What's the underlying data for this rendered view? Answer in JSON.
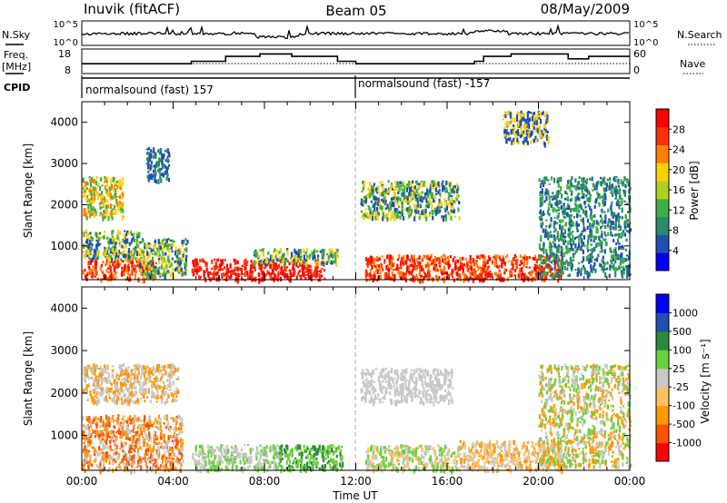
{
  "header": {
    "station": "Inuvik (fitACF)",
    "beam": "Beam 05",
    "date": "08/May/2009"
  },
  "summary_panel": {
    "nsky_label": "N.Sky",
    "nsky_ticks": [
      "10^5",
      "10^0"
    ],
    "nsearch_label": "N.Search",
    "nsearch_ticks": [
      "10^5",
      "10^0"
    ],
    "freq_label_1": "Freq.",
    "freq_label_2": "[MHz]",
    "freq_ticks": [
      "18",
      "8"
    ],
    "nave_label": "Nave",
    "nave_ticks": [
      "60",
      "0"
    ],
    "cpid_label": "CPID",
    "cpid_segments": [
      "normalsound (fast) 157",
      "normalsound (fast) -157"
    ],
    "freq_steps": [
      [
        0,
        12
      ],
      [
        4.8,
        12
      ],
      [
        4.8,
        13
      ],
      [
        6.3,
        13
      ],
      [
        6.3,
        15
      ],
      [
        7.8,
        15
      ],
      [
        7.8,
        16
      ],
      [
        9.2,
        16
      ],
      [
        9.2,
        15
      ],
      [
        11.2,
        15
      ],
      [
        11.2,
        13
      ],
      [
        12,
        13
      ],
      [
        12,
        12
      ],
      [
        17.2,
        12
      ],
      [
        17.2,
        13
      ],
      [
        17.6,
        13
      ],
      [
        17.6,
        15
      ],
      [
        18.8,
        15
      ],
      [
        18.8,
        16
      ],
      [
        21.3,
        16
      ],
      [
        21.3,
        14
      ],
      [
        22.2,
        14
      ],
      [
        22.2,
        15
      ],
      [
        24,
        15
      ]
    ],
    "freq_range": [
      8,
      18
    ]
  },
  "chart_data": [
    {
      "type": "heatmap",
      "name": "Power",
      "xlabel": "",
      "ylabel": "Slant Range [km]",
      "xlim": [
        0,
        24
      ],
      "ylim": [
        180,
        4500
      ],
      "y_ticks": [
        "1000",
        "2000",
        "3000",
        "4000"
      ],
      "colorbar": {
        "label": "Power [dB]",
        "ticks": [
          "28",
          "24",
          "20",
          "16",
          "12",
          "8",
          "4"
        ],
        "colors": [
          "#0000ff",
          "#1f4fb0",
          "#2a8a6a",
          "#3cb043",
          "#b0d020",
          "#ffd000",
          "#ff8000",
          "#ff3000",
          "#ff0000"
        ]
      },
      "regions": [
        {
          "x": [
            0.0,
            1.8
          ],
          "y": [
            1700,
            2700
          ],
          "colors": [
            "#ff8000",
            "#ffd000",
            "#3cb043"
          ]
        },
        {
          "x": [
            0.0,
            3.2
          ],
          "y": [
            200,
            700
          ],
          "colors": [
            "#ff0000",
            "#ff3000",
            "#ff8000"
          ]
        },
        {
          "x": [
            0.0,
            2.5
          ],
          "y": [
            700,
            1400
          ],
          "colors": [
            "#3cb043",
            "#1f4fb0",
            "#ffd000"
          ]
        },
        {
          "x": [
            2.5,
            4.6
          ],
          "y": [
            300,
            1200
          ],
          "colors": [
            "#ffd000",
            "#3cb043",
            "#1f4fb0"
          ]
        },
        {
          "x": [
            2.8,
            3.8
          ],
          "y": [
            2600,
            3400
          ],
          "colors": [
            "#1f4fb0",
            "#2a8a6a"
          ]
        },
        {
          "x": [
            4.8,
            10.6
          ],
          "y": [
            200,
            700
          ],
          "colors": [
            "#ff0000",
            "#ff3000"
          ]
        },
        {
          "x": [
            7.5,
            11.2
          ],
          "y": [
            600,
            950
          ],
          "colors": [
            "#3cb043",
            "#1f4fb0",
            "#ffd000"
          ]
        },
        {
          "x": [
            12.2,
            16.5
          ],
          "y": [
            1700,
            2600
          ],
          "colors": [
            "#1f4fb0",
            "#3cb043",
            "#ffd000"
          ]
        },
        {
          "x": [
            12.4,
            21.0
          ],
          "y": [
            200,
            800
          ],
          "colors": [
            "#ff0000",
            "#ff3000",
            "#ff8000"
          ]
        },
        {
          "x": [
            20.0,
            24.0
          ],
          "y": [
            300,
            2700
          ],
          "colors": [
            "#1f4fb0",
            "#3cb043",
            "#2a8a6a"
          ]
        },
        {
          "x": [
            18.4,
            20.4
          ],
          "y": [
            3500,
            4300
          ],
          "colors": [
            "#1f4fb0",
            "#ffd000"
          ]
        }
      ]
    },
    {
      "type": "heatmap",
      "name": "Velocity",
      "xlabel": "Time UT",
      "ylabel": "Slant Range [km]",
      "xlim": [
        0,
        24
      ],
      "ylim": [
        180,
        4500
      ],
      "x_ticks": [
        "00:00",
        "04:00",
        "08:00",
        "12:00",
        "16:00",
        "20:00",
        "00:00"
      ],
      "y_ticks": [
        "1000",
        "2000",
        "3000",
        "4000"
      ],
      "colorbar": {
        "label": "Velocity [m s⁻¹]",
        "ticks": [
          "1000",
          "500",
          "100",
          "25",
          "-25",
          "-100",
          "-500",
          "-1000"
        ],
        "colors": [
          "#ff0000",
          "#ff5000",
          "#ff9a00",
          "#ffc060",
          "#c8c8c8",
          "#6ad040",
          "#2e8a3a",
          "#1f4fb0",
          "#0000ff"
        ]
      },
      "regions": [
        {
          "x": [
            0.0,
            4.2
          ],
          "y": [
            1800,
            2700
          ],
          "colors": [
            "#c8c8c8",
            "#ff9a00"
          ]
        },
        {
          "x": [
            0.0,
            4.4
          ],
          "y": [
            200,
            1500
          ],
          "colors": [
            "#ff9a00",
            "#ff5000",
            "#c8c8c8"
          ]
        },
        {
          "x": [
            4.8,
            8.6
          ],
          "y": [
            200,
            800
          ],
          "colors": [
            "#c8c8c8",
            "#6ad040"
          ]
        },
        {
          "x": [
            8.6,
            11.4
          ],
          "y": [
            200,
            800
          ],
          "colors": [
            "#6ad040",
            "#2e8a3a"
          ]
        },
        {
          "x": [
            12.2,
            16.2
          ],
          "y": [
            1800,
            2600
          ],
          "colors": [
            "#c8c8c8"
          ]
        },
        {
          "x": [
            12.4,
            16.5
          ],
          "y": [
            200,
            800
          ],
          "colors": [
            "#6ad040",
            "#c8c8c8",
            "#ffc060"
          ]
        },
        {
          "x": [
            16.5,
            21.0
          ],
          "y": [
            200,
            900
          ],
          "colors": [
            "#ff9a00",
            "#ffc060",
            "#c8c8c8"
          ]
        },
        {
          "x": [
            20.0,
            24.0
          ],
          "y": [
            300,
            2700
          ],
          "colors": [
            "#ff9a00",
            "#c8c8c8",
            "#6ad040"
          ]
        }
      ]
    }
  ]
}
